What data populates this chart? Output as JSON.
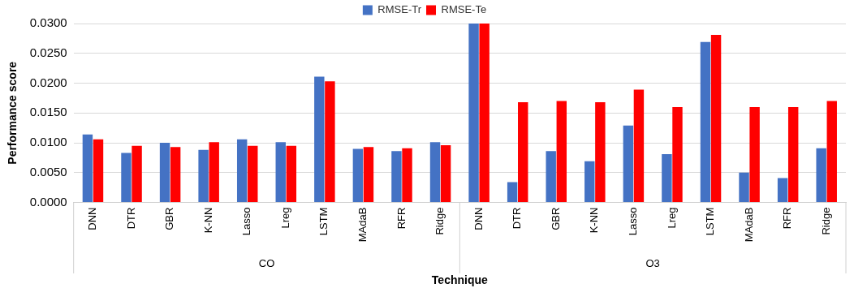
{
  "chart_data": {
    "type": "bar",
    "xlabel": "Technique",
    "ylabel": "Performance score",
    "categories": [
      "DNN",
      "DTR",
      "GBR",
      "K-NN",
      "Lasso",
      "Lreg",
      "LSTM",
      "MAdaB",
      "RFR",
      "Ridge",
      "DNN",
      "DTR",
      "GBR",
      "K-NN",
      "Lasso",
      "Lreg",
      "LSTM",
      "MAdaB",
      "RFR",
      "Ridge"
    ],
    "series": [
      {
        "name": "RMSE-Tr",
        "color": "#4472c4",
        "values": [
          0.0114,
          0.0083,
          0.01,
          0.0088,
          0.0106,
          0.0101,
          0.0211,
          0.009,
          0.0086,
          0.0101,
          0.03,
          0.0034,
          0.0086,
          0.0069,
          0.0129,
          0.0081,
          0.0269,
          0.005,
          0.0041,
          0.0091
        ]
      },
      {
        "name": "RMSE-Te",
        "color": "#ff0000",
        "values": [
          0.0106,
          0.0095,
          0.0093,
          0.0101,
          0.0095,
          0.0095,
          0.0203,
          0.0093,
          0.0091,
          0.0096,
          0.03,
          0.0168,
          0.017,
          0.0168,
          0.0189,
          0.016,
          0.0281,
          0.016,
          0.016,
          0.017
        ]
      }
    ],
    "annotations": [
      "CO",
      "O3"
    ],
    "ylim": [
      0,
      0.03
    ],
    "yticks": [
      {
        "value": 0,
        "label": "0.0000"
      },
      {
        "value": 0.005,
        "label": "0.0050"
      },
      {
        "value": 0.01,
        "label": "0.0100"
      },
      {
        "value": 0.015,
        "label": "0.0150"
      },
      {
        "value": 0.02,
        "label": "0.0200"
      },
      {
        "value": 0.025,
        "label": "0.0250"
      },
      {
        "value": 0.03,
        "label": "0.0300"
      }
    ],
    "grid": "y",
    "legend": "top"
  }
}
